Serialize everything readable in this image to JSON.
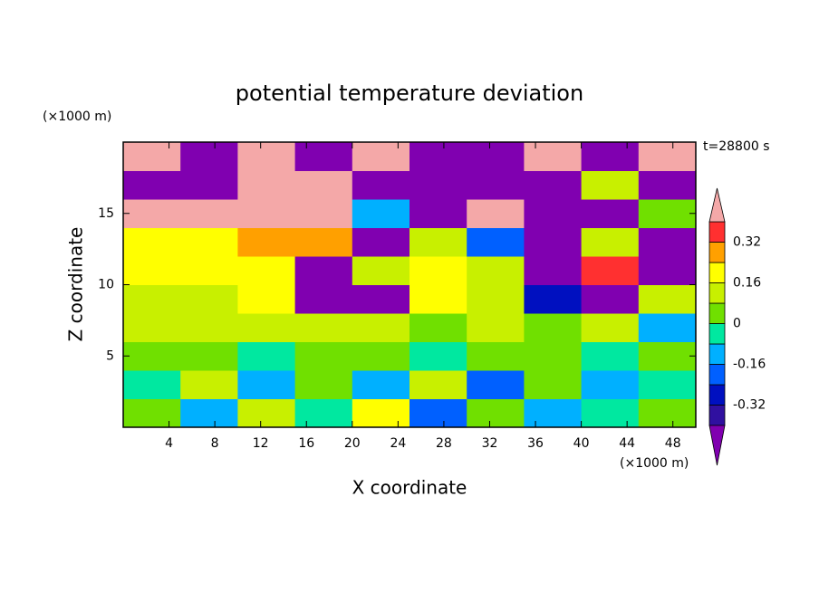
{
  "chart_data": {
    "type": "contour",
    "title": "potential temperature deviation",
    "x_label": "X coordinate",
    "y_label": "Z coordinate",
    "x_unit": "(×1000 m)",
    "y_unit": "(×1000 m)",
    "annotation": "t=28800 s",
    "x": [
      2.5,
      7.5,
      12.5,
      17.5,
      22.5,
      27.5,
      32.5,
      37.5,
      42.5,
      47.5
    ],
    "y": [
      1,
      3,
      5,
      7,
      9,
      11,
      13,
      15,
      17,
      19
    ],
    "z": [
      [
        0.05,
        -0.1,
        0.1,
        -0.05,
        0.2,
        -0.2,
        0.05,
        -0.1,
        -0.05,
        0.02
      ],
      [
        -0.05,
        0.1,
        -0.1,
        0.05,
        -0.15,
        0.15,
        -0.2,
        0.05,
        -0.1,
        -0.05
      ],
      [
        0.02,
        0.03,
        -0.02,
        0.02,
        0.01,
        -0.05,
        0.02,
        0.01,
        -0.02,
        0.02
      ],
      [
        0.1,
        0.12,
        0.1,
        0.12,
        0.1,
        0.05,
        0.1,
        0.05,
        0.1,
        -0.1
      ],
      [
        0.12,
        0.15,
        0.2,
        -0.45,
        -0.45,
        0.2,
        0.15,
        -0.3,
        -0.45,
        0.1
      ],
      [
        0.2,
        0.22,
        0.2,
        -0.42,
        0.1,
        0.2,
        0.1,
        -0.45,
        0.35,
        -0.45
      ],
      [
        0.18,
        0.2,
        0.25,
        0.3,
        -0.45,
        0.1,
        -0.2,
        -0.45,
        0.1,
        -0.45
      ],
      [
        0.45,
        0.45,
        0.45,
        0.45,
        -0.1,
        -0.45,
        0.45,
        -0.45,
        -0.45,
        0.01
      ],
      [
        -0.45,
        -0.45,
        0.45,
        0.45,
        -0.45,
        -0.45,
        -0.45,
        -0.45,
        0.1,
        -0.45
      ],
      [
        0.45,
        -0.45,
        0.45,
        -0.45,
        0.45,
        -0.45,
        -0.45,
        0.45,
        -0.45,
        0.45
      ]
    ],
    "levels": [
      -0.4,
      -0.32,
      -0.24,
      -0.16,
      -0.08,
      0,
      0.08,
      0.16,
      0.24,
      0.32,
      0.4
    ],
    "colors": [
      "#8000b0",
      "#3010a0",
      "#0010c0",
      "#0060ff",
      "#00b0ff",
      "#00e8a0",
      "#70e000",
      "#c8f000",
      "#ffff00",
      "#ffa000",
      "#ff3030",
      "#f4a8a8"
    ],
    "colorbar_ticks": [
      0.32,
      0.16,
      0,
      -0.16,
      -0.32
    ],
    "xlim": [
      0,
      50
    ],
    "ylim": [
      0,
      20
    ],
    "xticks": [
      4,
      8,
      12,
      16,
      20,
      24,
      28,
      32,
      36,
      40,
      44,
      48
    ],
    "yticks": [
      5,
      10,
      15
    ]
  }
}
